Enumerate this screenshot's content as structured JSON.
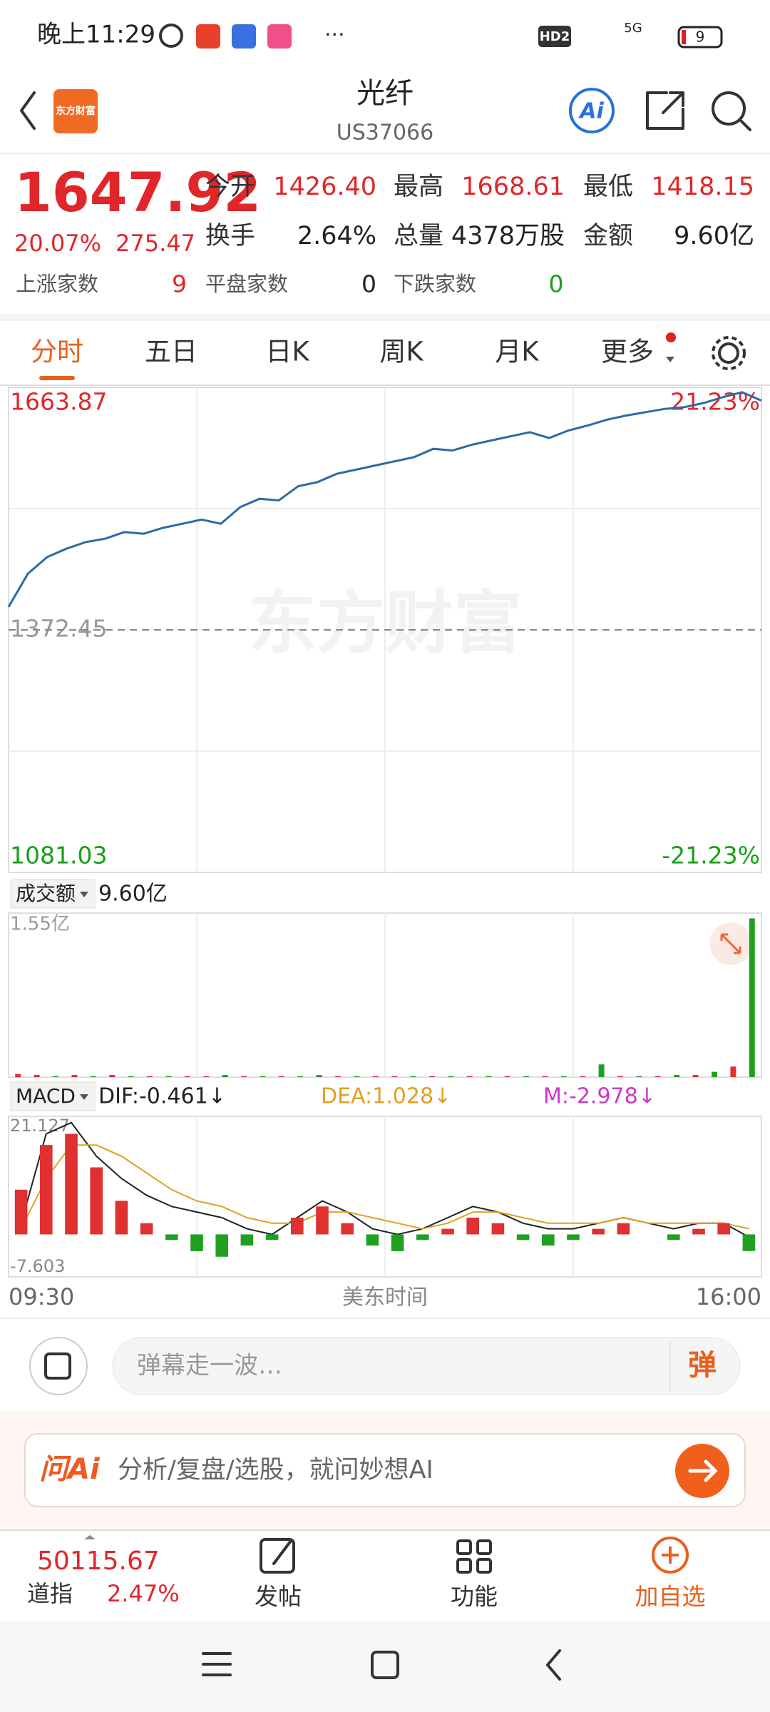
{
  "status_bar": {
    "time": "晚上11:29",
    "hd": "HD2",
    "network": "5G",
    "battery": "9"
  },
  "header": {
    "logo": "东方财富",
    "title": "光纤",
    "code": "US37066",
    "ai_button": "Ai"
  },
  "quote": {
    "price": "1647.92",
    "change_pct": "20.07%",
    "change": "275.47",
    "stats": [
      {
        "label": "今开",
        "value": "1426.40"
      },
      {
        "label": "最高",
        "value": "1668.61"
      },
      {
        "label": "最低",
        "value": "1418.15"
      },
      {
        "label": "换手",
        "value": "2.64%"
      },
      {
        "label": "总量",
        "value": "4378万股"
      },
      {
        "label": "金额",
        "value": "9.60亿"
      }
    ],
    "breadth": [
      {
        "label": "上涨家数",
        "value": "9"
      },
      {
        "label": "平盘家数",
        "value": "0"
      },
      {
        "label": "下跌家数",
        "value": "0"
      }
    ]
  },
  "tabs": [
    "分时",
    "五日",
    "日K",
    "周K",
    "月K",
    "更多"
  ],
  "watermark": "东方财富",
  "volume_header": {
    "selector": "成交额",
    "value": "9.60亿"
  },
  "macd_selector": "MACD",
  "time_axis": {
    "start": "09:30",
    "label": "美东时间",
    "end": "16:00"
  },
  "comment_input": {
    "placeholder": "弹幕走一波…",
    "badge": "弹"
  },
  "ai_bar": {
    "logo": "问Ai",
    "placeholder": "分析/复盘/选股，就问妙想AI"
  },
  "bottom_nav": {
    "index_value": "50115.67",
    "index_name": "道指",
    "index_change": "2.47%",
    "items": [
      "发帖",
      "功能",
      "加自选"
    ]
  },
  "chart_data": [
    {
      "type": "line",
      "color": "#2f6aa6",
      "values": [
        1400,
        1440,
        1460,
        1470,
        1478,
        1482,
        1490,
        1488,
        1495,
        1500,
        1505,
        1500,
        1520,
        1530,
        1528,
        1545,
        1550,
        1560,
        1565,
        1570,
        1575,
        1580,
        1590,
        1588,
        1595,
        1600,
        1605,
        1610,
        1603,
        1612,
        1618,
        1625,
        1630,
        1634,
        1638,
        1640,
        1645,
        1652,
        1658,
        1647.92
      ],
      "ylim": [
        1081.03,
        1663.87
      ],
      "yticks": [
        1081.03,
        1372.45,
        1663.87
      ],
      "y2lim": [
        -21.23,
        21.23
      ],
      "y2ticks": [
        {
          "value": -21.23,
          "label": "-21.23%"
        },
        {
          "value": 21.23,
          "label": "21.23%"
        }
      ]
    },
    {
      "type": "bar",
      "values": [
        0.03,
        0.02,
        0.01,
        0.02,
        0.01,
        0.02,
        0.01,
        0.01,
        0.01,
        0.01,
        0.01,
        0.02,
        0.01,
        0.01,
        0.01,
        0.01,
        0.02,
        0.01,
        0.01,
        0.01,
        0.01,
        0.01,
        0.01,
        0.01,
        0.01,
        0.01,
        0.01,
        0.01,
        0.01,
        0.01,
        0.01,
        0.12,
        0.01,
        0.01,
        0.01,
        0.02,
        0.02,
        0.05,
        0.1,
        1.5
      ],
      "colors": [
        "#e03030",
        "#e03030",
        "#20a020",
        "#e03030",
        "#20a020",
        "#e03030",
        "#20a020",
        "#e03030",
        "#20a020",
        "#e03030",
        "#e03030",
        "#20a020",
        "#e03030",
        "#20a020",
        "#e03030",
        "#20a020",
        "#20a020",
        "#e03030",
        "#20a020",
        "#e03030",
        "#e03030",
        "#20a020",
        "#e03030",
        "#20a020",
        "#e03030",
        "#20a020",
        "#e03030",
        "#20a020",
        "#e03030",
        "#20a020",
        "#e03030",
        "#20a020",
        "#e03030",
        "#20a020",
        "#e03030",
        "#20a020",
        "#e03030",
        "#20a020",
        "#e03030",
        "#20a020"
      ],
      "ylim": [
        0,
        1.55
      ],
      "yticks": [
        {
          "value": 1.55,
          "label": "1.55亿"
        }
      ]
    },
    {
      "type": "macd",
      "ylim": [
        -7.603,
        21.127
      ],
      "yticks": [
        -7.603,
        21.127
      ],
      "up_color": "#e03030",
      "down_color": "#20a020",
      "series": [
        {
          "name": "DIF:-0.461↓",
          "color": "#222222",
          "values": [
            2,
            18,
            20,
            14,
            10,
            7,
            5,
            4,
            3,
            1,
            0,
            3,
            6,
            4,
            1,
            0,
            1,
            3,
            5,
            4,
            2,
            1,
            1,
            2,
            3,
            2,
            1,
            2,
            2,
            -0.461
          ]
        },
        {
          "name": "DEA:1.028↓",
          "color": "#e0a020",
          "values": [
            1,
            10,
            16,
            16,
            14,
            11,
            8,
            6,
            5,
            3,
            2,
            2,
            4,
            4,
            3,
            2,
            1,
            2,
            4,
            4,
            3,
            2,
            2,
            2,
            3,
            2,
            2,
            2,
            2,
            1.028
          ]
        },
        {
          "name": "M:-2.978↓",
          "color": "#c83ac8",
          "values": [
            8,
            16,
            18,
            12,
            6,
            2,
            -1,
            -3,
            -4,
            -2,
            -1,
            3,
            5,
            2,
            -2,
            -3,
            -1,
            1,
            3,
            2,
            -1,
            -2,
            -1,
            1,
            2,
            0,
            -1,
            1,
            2,
            -2.978
          ]
        }
      ]
    }
  ]
}
